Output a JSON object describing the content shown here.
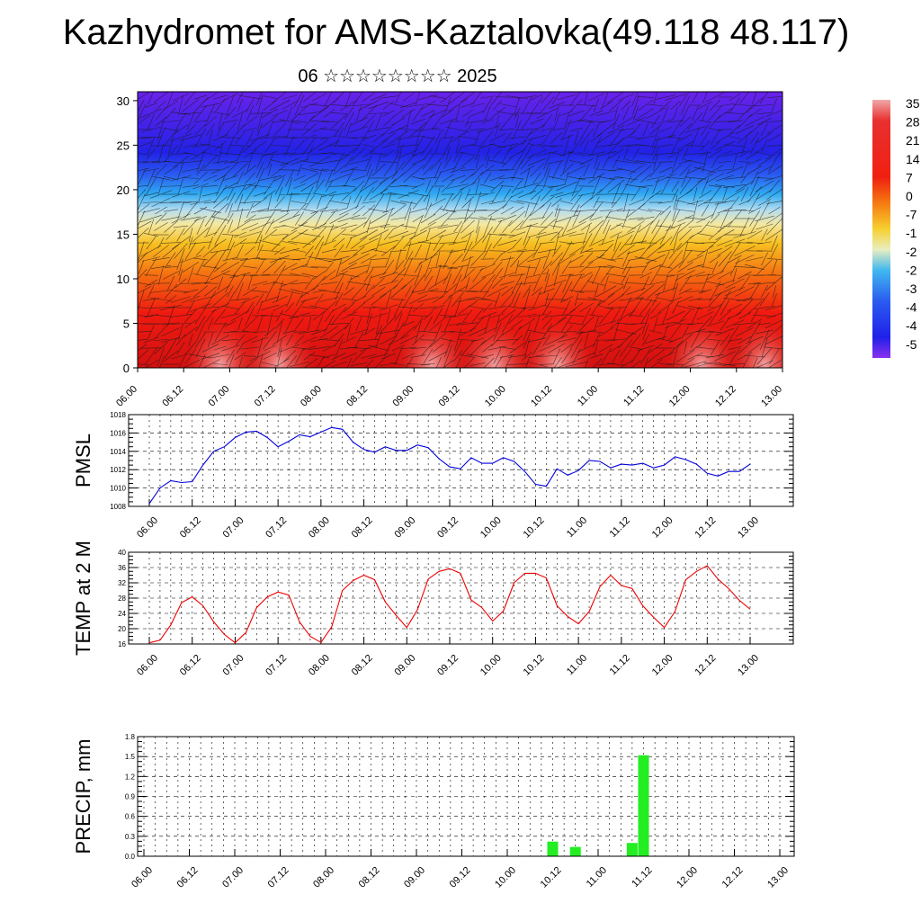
{
  "title": "Kazhydromet for AMS-Kaztalovka(49.118 48.117)",
  "subtitle": "06 ☆☆☆☆☆☆☆☆ 2025",
  "time_labels": [
    "06.00",
    "06.12",
    "07.00",
    "07.12",
    "08.00",
    "08.12",
    "09.00",
    "09.12",
    "10.00",
    "10.12",
    "11.00",
    "11.12",
    "12.00",
    "12.12",
    "13.00"
  ],
  "colors": {
    "pmsl_line": "#0000dd",
    "temp_line": "#ee0000",
    "precip_bar": "#22ee22",
    "frame": "#000000"
  },
  "chart_data": [
    {
      "type": "heatmap",
      "yticks": [
        "0",
        "5",
        "10",
        "15",
        "20",
        "25",
        "30"
      ],
      "ylim": [
        0,
        31
      ],
      "colorbar_labels": [
        "35",
        "28",
        "21",
        "14",
        "7",
        "0",
        "-7",
        "-1",
        "-2",
        "-2",
        "-3",
        "-4",
        "-4",
        "-5"
      ]
    },
    {
      "type": "line",
      "ylabel": "PMSL",
      "ylim": [
        1008,
        1018
      ],
      "yticks": [
        "1018",
        "1016",
        "1014",
        "1012",
        "1010",
        "1008"
      ],
      "x_step_hours": 3,
      "values": [
        1008.3,
        1010.0,
        1010.8,
        1010.6,
        1010.7,
        1012.5,
        1014.0,
        1014.5,
        1015.5,
        1016.1,
        1016.2,
        1015.5,
        1014.5,
        1015.1,
        1015.8,
        1015.6,
        1016.1,
        1016.6,
        1016.4,
        1015.0,
        1014.2,
        1013.9,
        1014.5,
        1014.1,
        1014.1,
        1014.7,
        1014.4,
        1013.2,
        1012.3,
        1012.1,
        1013.3,
        1012.7,
        1012.7,
        1013.3,
        1012.9,
        1011.8,
        1010.4,
        1010.2,
        1012.1,
        1011.4,
        1011.9,
        1013.0,
        1012.9,
        1012.2,
        1012.6,
        1012.5,
        1012.7,
        1012.2,
        1012.5,
        1013.4,
        1013.1,
        1012.6,
        1011.6,
        1011.3,
        1011.8,
        1011.8,
        1012.6
      ]
    },
    {
      "type": "line",
      "ylabel": "TEMP at 2 M",
      "ylim": [
        16,
        40
      ],
      "yticks": [
        "40",
        "36",
        "32",
        "28",
        "24",
        "20",
        "16"
      ],
      "x_step_hours": 3,
      "values": [
        16.3,
        17.0,
        21.0,
        26.8,
        28.3,
        26.0,
        21.8,
        18.5,
        16.3,
        19.0,
        25.5,
        28.3,
        29.6,
        28.8,
        21.8,
        18.0,
        16.4,
        20.5,
        30.0,
        32.6,
        34.0,
        32.8,
        27.0,
        23.5,
        20.3,
        25.0,
        33.0,
        35.0,
        35.7,
        34.5,
        27.5,
        25.5,
        22.0,
        24.6,
        32.0,
        34.5,
        34.5,
        33.3,
        26.0,
        23.2,
        21.3,
        24.5,
        31.0,
        34.0,
        31.3,
        30.5,
        26.0,
        23.0,
        20.3,
        24.5,
        32.8,
        35.0,
        36.5,
        33.0,
        30.5,
        27.4,
        25.1
      ]
    },
    {
      "type": "bar",
      "ylabel": "PRECIP, mm",
      "ylim": [
        0,
        1.8
      ],
      "yticks": [
        "1.8",
        "1.5",
        "1.2",
        "0.9",
        "0.6",
        "0.3",
        "0.0"
      ],
      "bars": [
        {
          "time": "10.12",
          "value": 0.22
        },
        {
          "time": "10.18",
          "value": 0.14
        },
        {
          "time": "11.09",
          "value": 0.2
        },
        {
          "time": "11.12",
          "value": 1.52
        }
      ]
    }
  ]
}
